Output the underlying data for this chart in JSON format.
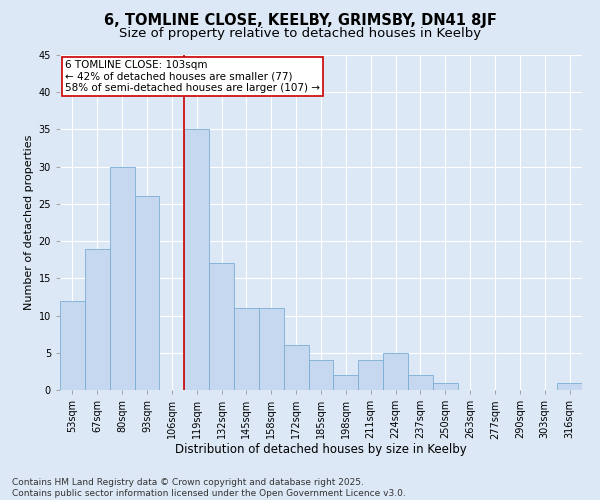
{
  "title": "6, TOMLINE CLOSE, KEELBY, GRIMSBY, DN41 8JF",
  "subtitle": "Size of property relative to detached houses in Keelby",
  "xlabel": "Distribution of detached houses by size in Keelby",
  "ylabel": "Number of detached properties",
  "categories": [
    "53sqm",
    "67sqm",
    "80sqm",
    "93sqm",
    "106sqm",
    "119sqm",
    "132sqm",
    "145sqm",
    "158sqm",
    "172sqm",
    "185sqm",
    "198sqm",
    "211sqm",
    "224sqm",
    "237sqm",
    "250sqm",
    "263sqm",
    "277sqm",
    "290sqm",
    "303sqm",
    "316sqm"
  ],
  "values": [
    12,
    19,
    30,
    26,
    0,
    35,
    17,
    11,
    11,
    6,
    4,
    2,
    4,
    5,
    2,
    1,
    0,
    0,
    0,
    0,
    1
  ],
  "bar_color": "#c5d8f0",
  "bar_edge_color": "#7aadd4",
  "red_line_index": 4,
  "red_line_color": "#cc0000",
  "annotation_text": "6 TOMLINE CLOSE: 103sqm\n← 42% of detached houses are smaller (77)\n58% of semi-detached houses are larger (107) →",
  "annotation_box_edge": "#cc0000",
  "annotation_fontsize": 7.5,
  "ylim": [
    0,
    45
  ],
  "yticks": [
    0,
    5,
    10,
    15,
    20,
    25,
    30,
    35,
    40,
    45
  ],
  "title_fontsize": 10.5,
  "subtitle_fontsize": 9.5,
  "xlabel_fontsize": 8.5,
  "ylabel_fontsize": 8,
  "footer": "Contains HM Land Registry data © Crown copyright and database right 2025.\nContains public sector information licensed under the Open Government Licence v3.0.",
  "footer_fontsize": 6.5,
  "bg_color": "#dce8f5",
  "plot_bg_color": "#dce8f5",
  "grid_color": "#ffffff",
  "tick_fontsize": 7
}
